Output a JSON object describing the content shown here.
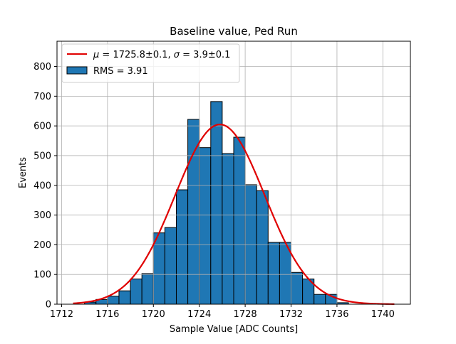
{
  "chart_data": {
    "type": "bar",
    "title": "Baseline value, Ped Run",
    "xlabel": "Sample Value [ADC Counts]",
    "ylabel": "Events",
    "xlim": [
      1711.6,
      1742.4
    ],
    "ylim": [
      0,
      885
    ],
    "xticks": [
      1712,
      1716,
      1720,
      1724,
      1728,
      1732,
      1736,
      1740
    ],
    "yticks": [
      0,
      100,
      200,
      300,
      400,
      500,
      600,
      700,
      800
    ],
    "grid": true,
    "legend_position": "top-left",
    "bin_width": 1,
    "bins": [
      {
        "x0": 1714,
        "x1": 1715,
        "value": 7
      },
      {
        "x0": 1715,
        "x1": 1716,
        "value": 16
      },
      {
        "x0": 1716,
        "x1": 1717,
        "value": 27
      },
      {
        "x0": 1717,
        "x1": 1718,
        "value": 45
      },
      {
        "x0": 1718,
        "x1": 1719,
        "value": 85
      },
      {
        "x0": 1719,
        "x1": 1720,
        "value": 103
      },
      {
        "x0": 1720,
        "x1": 1721,
        "value": 240
      },
      {
        "x0": 1721,
        "x1": 1722,
        "value": 258
      },
      {
        "x0": 1722,
        "x1": 1723,
        "value": 385
      },
      {
        "x0": 1723,
        "x1": 1724,
        "value": 622
      },
      {
        "x0": 1724,
        "x1": 1725,
        "value": 527
      },
      {
        "x0": 1725,
        "x1": 1726,
        "value": 682
      },
      {
        "x0": 1726,
        "x1": 1727,
        "value": 507
      },
      {
        "x0": 1727,
        "x1": 1728,
        "value": 562
      },
      {
        "x0": 1728,
        "x1": 1729,
        "value": 402
      },
      {
        "x0": 1729,
        "x1": 1730,
        "value": 382
      },
      {
        "x0": 1730,
        "x1": 1731,
        "value": 208
      },
      {
        "x0": 1731,
        "x1": 1732,
        "value": 208
      },
      {
        "x0": 1732,
        "x1": 1733,
        "value": 107
      },
      {
        "x0": 1733,
        "x1": 1734,
        "value": 85
      },
      {
        "x0": 1734,
        "x1": 1735,
        "value": 33
      },
      {
        "x0": 1735,
        "x1": 1736,
        "value": 33
      },
      {
        "x0": 1736,
        "x1": 1737,
        "value": 5
      }
    ],
    "fit": {
      "mu": 1725.8,
      "sigma": 3.9,
      "amplitude": 605,
      "x_range": [
        1713,
        1741
      ]
    },
    "series": [
      {
        "name": "$\\mu = 1725.8 \\pm 0.1, \\sigma = 3.9 \\pm 0.1$",
        "kind": "line",
        "color": "#e00000"
      },
      {
        "name": "RMS = 3.91",
        "kind": "histogram",
        "color": "#1f77b4"
      }
    ],
    "legend": {
      "fit_label_parts": {
        "mu_symbol": "μ",
        "mu_text": " = 1725.8±0.1, ",
        "sigma_symbol": "σ",
        "sigma_text": " = 3.9±0.1"
      },
      "hist_label": "RMS = 3.91"
    }
  }
}
